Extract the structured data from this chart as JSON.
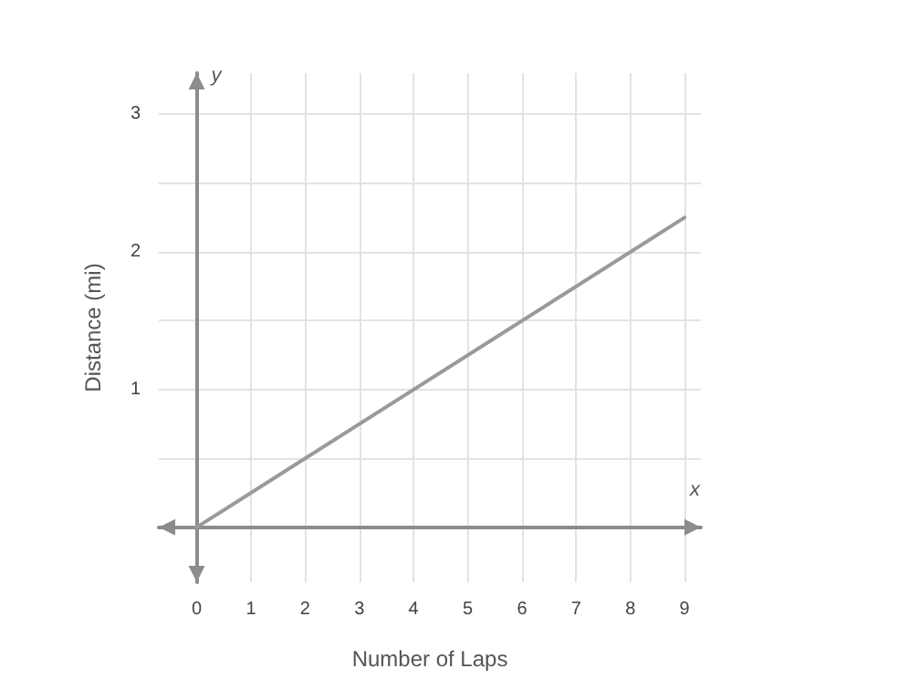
{
  "chart_data": {
    "type": "line",
    "xlabel": "Number of Laps",
    "ylabel": "Distance (mi)",
    "annotations": [
      "x",
      "y"
    ],
    "series": [
      {
        "x": [
          0,
          9
        ],
        "values": [
          0,
          2.25
        ],
        "color": "#9a9a9a"
      }
    ],
    "xlim": [
      -0.7,
      9.3
    ],
    "ylim": [
      -0.4,
      3.3
    ],
    "xticks": [
      0,
      1,
      2,
      3,
      4,
      5,
      6,
      7,
      8,
      9
    ],
    "yticks": [
      {
        "value": 0,
        "label": null
      },
      {
        "value": 0.5,
        "label": null
      },
      1,
      {
        "value": 1.5,
        "label": null
      },
      2,
      {
        "value": 2.5,
        "label": null
      },
      3
    ],
    "grid": true,
    "marker": "none",
    "line_style": "solid"
  }
}
